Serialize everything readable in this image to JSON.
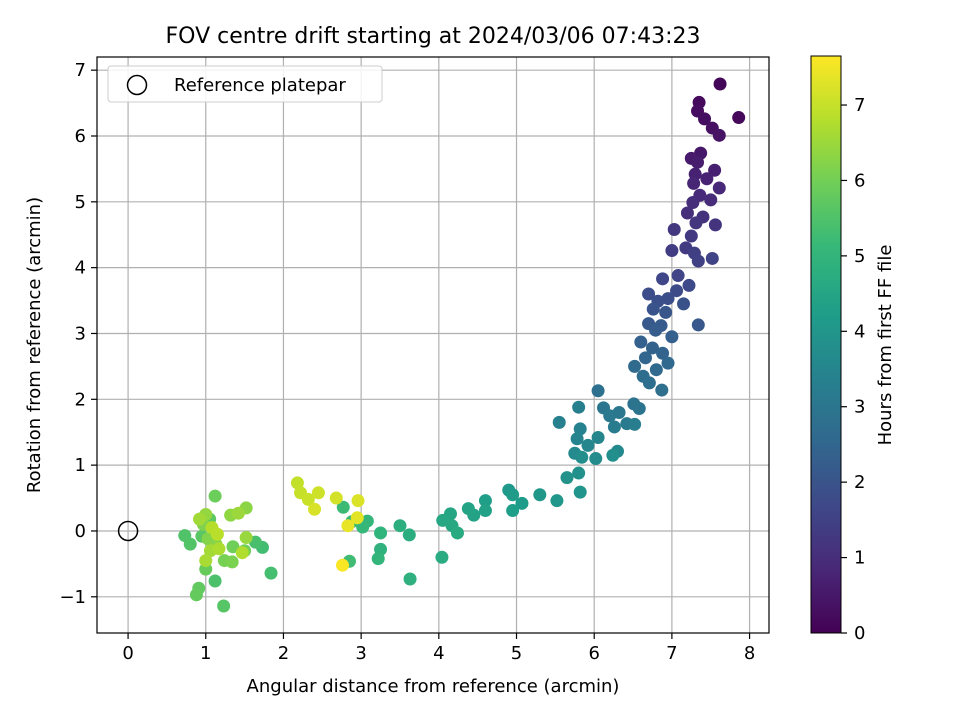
{
  "chart_data": {
    "type": "scatter",
    "title": "FOV centre drift starting at 2024/03/06 07:43:23",
    "xlabel": "Angular distance from reference (arcmin)",
    "ylabel": "Rotation from reference (arcmin)",
    "xlim": [
      -0.4,
      8.25
    ],
    "ylim": [
      -1.55,
      7.2
    ],
    "xticks": [
      0,
      1,
      2,
      3,
      4,
      5,
      6,
      7,
      8
    ],
    "yticks": [
      -1,
      0,
      1,
      2,
      3,
      4,
      5,
      6,
      7
    ],
    "grid": true,
    "legend": {
      "placement": "upper-left",
      "entries": [
        "Reference platepar"
      ]
    },
    "reference_point": {
      "x": 0,
      "y": 0,
      "label": "Reference platepar"
    },
    "colorbar": {
      "label": "Hours from first FF file",
      "colormap": "viridis",
      "range": [
        0,
        7.65
      ],
      "ticks": [
        0,
        1,
        2,
        3,
        4,
        5,
        6,
        7
      ]
    },
    "colormap_stops": [
      "#440154",
      "#482878",
      "#3e4989",
      "#31688e",
      "#26828e",
      "#1f9e89",
      "#35b779",
      "#6ece58",
      "#b5de2b",
      "#fde725"
    ],
    "series": [
      {
        "points": [
          [
            7.62,
            6.79,
            0.1
          ],
          [
            7.86,
            6.28,
            0.15
          ],
          [
            7.35,
            6.51,
            0.2
          ],
          [
            7.33,
            6.38,
            0.25
          ],
          [
            7.42,
            6.26,
            0.3
          ],
          [
            7.52,
            6.12,
            0.35
          ],
          [
            7.61,
            6.01,
            0.4
          ],
          [
            7.37,
            5.74,
            0.5
          ],
          [
            7.25,
            5.66,
            0.55
          ],
          [
            7.33,
            5.6,
            0.6
          ],
          [
            7.55,
            5.48,
            0.65
          ],
          [
            7.3,
            5.42,
            0.7
          ],
          [
            7.45,
            5.35,
            0.75
          ],
          [
            7.28,
            5.28,
            0.8
          ],
          [
            7.61,
            5.21,
            0.85
          ],
          [
            7.36,
            5.1,
            0.9
          ],
          [
            7.5,
            5.03,
            0.95
          ],
          [
            7.27,
            4.99,
            1.0
          ],
          [
            7.2,
            4.83,
            1.05
          ],
          [
            7.4,
            4.77,
            1.1
          ],
          [
            7.56,
            4.65,
            1.15
          ],
          [
            7.31,
            4.68,
            1.2
          ],
          [
            7.03,
            4.58,
            1.25
          ],
          [
            7.25,
            4.48,
            1.3
          ],
          [
            7.18,
            4.3,
            1.35
          ],
          [
            7.0,
            4.26,
            1.4
          ],
          [
            7.29,
            4.22,
            1.45
          ],
          [
            7.34,
            4.1,
            1.5
          ],
          [
            7.52,
            4.14,
            1.55
          ],
          [
            7.08,
            3.88,
            1.6
          ],
          [
            6.88,
            3.83,
            1.65
          ],
          [
            7.22,
            3.73,
            1.7
          ],
          [
            7.06,
            3.65,
            1.75
          ],
          [
            6.7,
            3.6,
            1.8
          ],
          [
            6.95,
            3.53,
            1.85
          ],
          [
            6.82,
            3.49,
            1.9
          ],
          [
            7.15,
            3.45,
            1.95
          ],
          [
            6.76,
            3.37,
            2.0
          ],
          [
            6.92,
            3.32,
            2.05
          ],
          [
            7.34,
            3.13,
            2.1
          ],
          [
            6.7,
            3.15,
            2.15
          ],
          [
            6.86,
            3.12,
            2.2
          ],
          [
            6.79,
            3.05,
            2.25
          ],
          [
            7.0,
            2.95,
            2.3
          ],
          [
            6.6,
            2.87,
            2.35
          ],
          [
            6.75,
            2.78,
            2.4
          ],
          [
            6.88,
            2.7,
            2.45
          ],
          [
            6.66,
            2.63,
            2.5
          ],
          [
            6.95,
            2.55,
            2.55
          ],
          [
            6.8,
            2.45,
            2.6
          ],
          [
            6.52,
            2.5,
            2.65
          ],
          [
            6.63,
            2.35,
            2.7
          ],
          [
            6.71,
            2.25,
            2.75
          ],
          [
            6.87,
            2.14,
            2.8
          ],
          [
            6.05,
            2.13,
            2.85
          ],
          [
            6.51,
            1.93,
            2.9
          ],
          [
            6.58,
            1.86,
            2.95
          ],
          [
            6.12,
            1.87,
            3.0
          ],
          [
            6.32,
            1.8,
            3.05
          ],
          [
            6.2,
            1.75,
            3.1
          ],
          [
            6.42,
            1.63,
            3.15
          ],
          [
            6.26,
            1.58,
            3.2
          ],
          [
            6.52,
            1.62,
            3.25
          ],
          [
            5.8,
            1.88,
            3.3
          ],
          [
            5.55,
            1.65,
            3.35
          ],
          [
            5.82,
            1.55,
            3.4
          ],
          [
            5.78,
            1.4,
            3.45
          ],
          [
            6.05,
            1.42,
            3.5
          ],
          [
            5.92,
            1.3,
            3.55
          ],
          [
            6.3,
            1.21,
            3.6
          ],
          [
            5.75,
            1.18,
            3.65
          ],
          [
            6.02,
            1.1,
            3.7
          ],
          [
            5.84,
            1.12,
            3.75
          ],
          [
            6.24,
            1.15,
            3.8
          ],
          [
            5.8,
            0.88,
            3.85
          ],
          [
            5.65,
            0.81,
            3.9
          ],
          [
            5.82,
            0.59,
            3.95
          ],
          [
            5.52,
            0.46,
            4.0
          ],
          [
            5.3,
            0.55,
            4.05
          ],
          [
            4.9,
            0.62,
            4.1
          ],
          [
            4.95,
            0.55,
            4.15
          ],
          [
            5.07,
            0.42,
            4.2
          ],
          [
            4.95,
            0.31,
            4.25
          ],
          [
            4.6,
            0.46,
            4.3
          ],
          [
            4.6,
            0.31,
            4.35
          ],
          [
            4.45,
            0.24,
            4.4
          ],
          [
            4.38,
            0.34,
            4.45
          ],
          [
            4.15,
            0.26,
            4.5
          ],
          [
            4.05,
            0.16,
            4.55
          ],
          [
            4.17,
            0.08,
            4.6
          ],
          [
            4.24,
            -0.03,
            4.65
          ],
          [
            4.04,
            -0.4,
            4.7
          ],
          [
            3.62,
            -0.06,
            4.75
          ],
          [
            3.5,
            0.08,
            4.8
          ],
          [
            3.63,
            -0.73,
            4.85
          ],
          [
            3.25,
            -0.28,
            4.9
          ],
          [
            3.25,
            -0.03,
            4.95
          ],
          [
            3.22,
            -0.42,
            5.0
          ],
          [
            3.08,
            0.15,
            5.05
          ],
          [
            3.02,
            0.06,
            5.1
          ],
          [
            2.88,
            0.14,
            5.15
          ],
          [
            2.77,
            0.36,
            5.2
          ],
          [
            2.85,
            -0.46,
            5.25
          ],
          [
            1.73,
            -0.25,
            5.3
          ],
          [
            1.84,
            -0.64,
            5.35
          ],
          [
            1.64,
            -0.17,
            5.4
          ],
          [
            1.12,
            -0.76,
            5.45
          ],
          [
            0.73,
            -0.07,
            5.5
          ],
          [
            0.8,
            -0.2,
            5.55
          ],
          [
            1.23,
            -1.14,
            5.6
          ],
          [
            0.95,
            -0.08,
            5.65
          ],
          [
            1.05,
            0.18,
            5.7
          ],
          [
            0.91,
            -0.87,
            5.75
          ],
          [
            0.88,
            -0.97,
            5.8
          ],
          [
            1.0,
            -0.58,
            5.85
          ],
          [
            1.12,
            0.53,
            5.9
          ],
          [
            1.35,
            -0.24,
            5.95
          ],
          [
            1.5,
            -0.3,
            6.0
          ],
          [
            1.24,
            -0.45,
            6.05
          ],
          [
            1.34,
            -0.47,
            6.1
          ],
          [
            0.97,
            0.1,
            6.15
          ],
          [
            1.03,
            -0.12,
            6.2
          ],
          [
            1.13,
            -0.2,
            6.25
          ],
          [
            1.52,
            0.35,
            6.3
          ],
          [
            1.32,
            0.24,
            6.35
          ],
          [
            1.0,
            0.25,
            6.4
          ],
          [
            1.52,
            -0.1,
            6.45
          ],
          [
            1.42,
            0.27,
            6.5
          ],
          [
            0.92,
            0.18,
            6.55
          ],
          [
            1.06,
            -0.3,
            6.6
          ],
          [
            1.0,
            -0.45,
            6.65
          ],
          [
            1.17,
            -0.27,
            6.7
          ],
          [
            1.47,
            -0.33,
            6.75
          ],
          [
            1.08,
            0.05,
            6.8
          ],
          [
            1.15,
            -0.05,
            6.85
          ],
          [
            2.18,
            0.73,
            6.95
          ],
          [
            2.22,
            0.58,
            7.0
          ],
          [
            2.32,
            0.48,
            7.05
          ],
          [
            2.45,
            0.58,
            7.1
          ],
          [
            2.68,
            0.5,
            7.15
          ],
          [
            2.4,
            0.33,
            7.2
          ],
          [
            2.96,
            0.46,
            7.25
          ],
          [
            2.95,
            0.2,
            7.35
          ],
          [
            2.83,
            0.08,
            7.4
          ],
          [
            2.76,
            -0.52,
            7.6
          ]
        ]
      }
    ]
  }
}
